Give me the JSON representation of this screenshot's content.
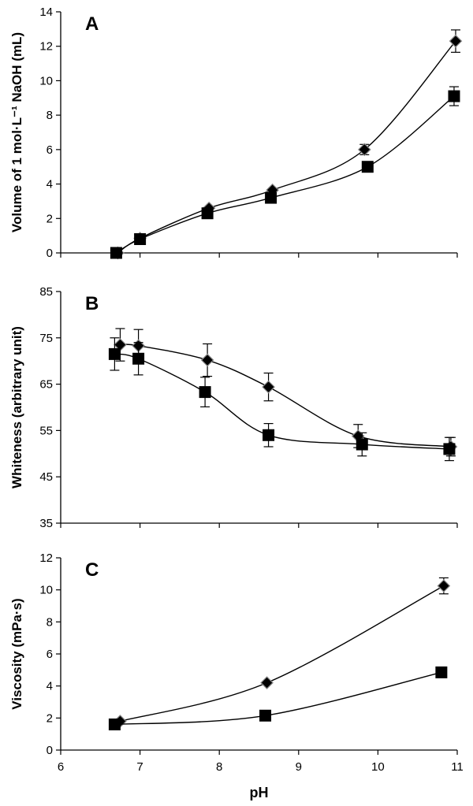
{
  "chart_data": [
    {
      "type": "line",
      "panel_label": "A",
      "ylabel": "Volume of 1 mol·L⁻¹ NaOH (mL)",
      "ylim": [
        0,
        14
      ],
      "yticks": [
        0,
        2,
        4,
        6,
        8,
        10,
        12,
        14
      ],
      "xlim": [
        6,
        11
      ],
      "grid": false,
      "series": [
        {
          "marker": "diamond",
          "x": [
            6.72,
            7.0,
            7.87,
            8.67,
            9.83,
            10.98
          ],
          "y": [
            0.0,
            0.85,
            2.6,
            3.65,
            6.0,
            12.3
          ],
          "err": [
            0,
            0,
            0,
            0,
            0.3,
            0.65
          ]
        },
        {
          "marker": "square",
          "x": [
            6.7,
            7.0,
            7.85,
            8.65,
            9.87,
            10.96
          ],
          "y": [
            0.0,
            0.8,
            2.3,
            3.2,
            5.0,
            9.1
          ],
          "err": [
            0,
            0,
            0,
            0,
            0,
            0.55
          ]
        }
      ]
    },
    {
      "type": "line",
      "panel_label": "B",
      "ylabel": "Whiteness (arbitrary unit)",
      "ylim": [
        35,
        85
      ],
      "yticks": [
        35,
        45,
        55,
        65,
        75,
        85
      ],
      "xlim": [
        6,
        11
      ],
      "grid": false,
      "series": [
        {
          "marker": "diamond",
          "x": [
            6.75,
            6.98,
            7.85,
            8.62,
            9.75,
            10.92
          ],
          "y": [
            73.5,
            73.3,
            70.2,
            64.4,
            53.8,
            51.5
          ],
          "err": [
            3.5,
            3.5,
            3.5,
            3.0,
            2.5,
            2.0
          ]
        },
        {
          "marker": "square",
          "x": [
            6.68,
            6.98,
            7.82,
            8.62,
            9.8,
            10.9
          ],
          "y": [
            71.5,
            70.5,
            63.3,
            54.0,
            52.0,
            51.0
          ],
          "err": [
            3.5,
            3.5,
            3.2,
            2.5,
            2.5,
            2.5
          ]
        }
      ]
    },
    {
      "type": "line",
      "panel_label": "C",
      "ylabel": "Viscosity (mPa·s)",
      "ylim": [
        0,
        12
      ],
      "yticks": [
        0,
        2,
        4,
        6,
        8,
        10,
        12
      ],
      "xlim": [
        6,
        11
      ],
      "xticks": [
        6,
        7,
        8,
        9,
        10,
        11
      ],
      "xlabel": "pH",
      "grid": false,
      "series": [
        {
          "marker": "diamond",
          "x": [
            6.75,
            8.6,
            10.83
          ],
          "y": [
            1.8,
            4.2,
            10.25
          ],
          "err": [
            0,
            0,
            0.5
          ]
        },
        {
          "marker": "square",
          "x": [
            6.68,
            8.58,
            10.8
          ],
          "y": [
            1.6,
            2.15,
            4.85
          ],
          "err": [
            0,
            0,
            0
          ]
        }
      ]
    }
  ]
}
